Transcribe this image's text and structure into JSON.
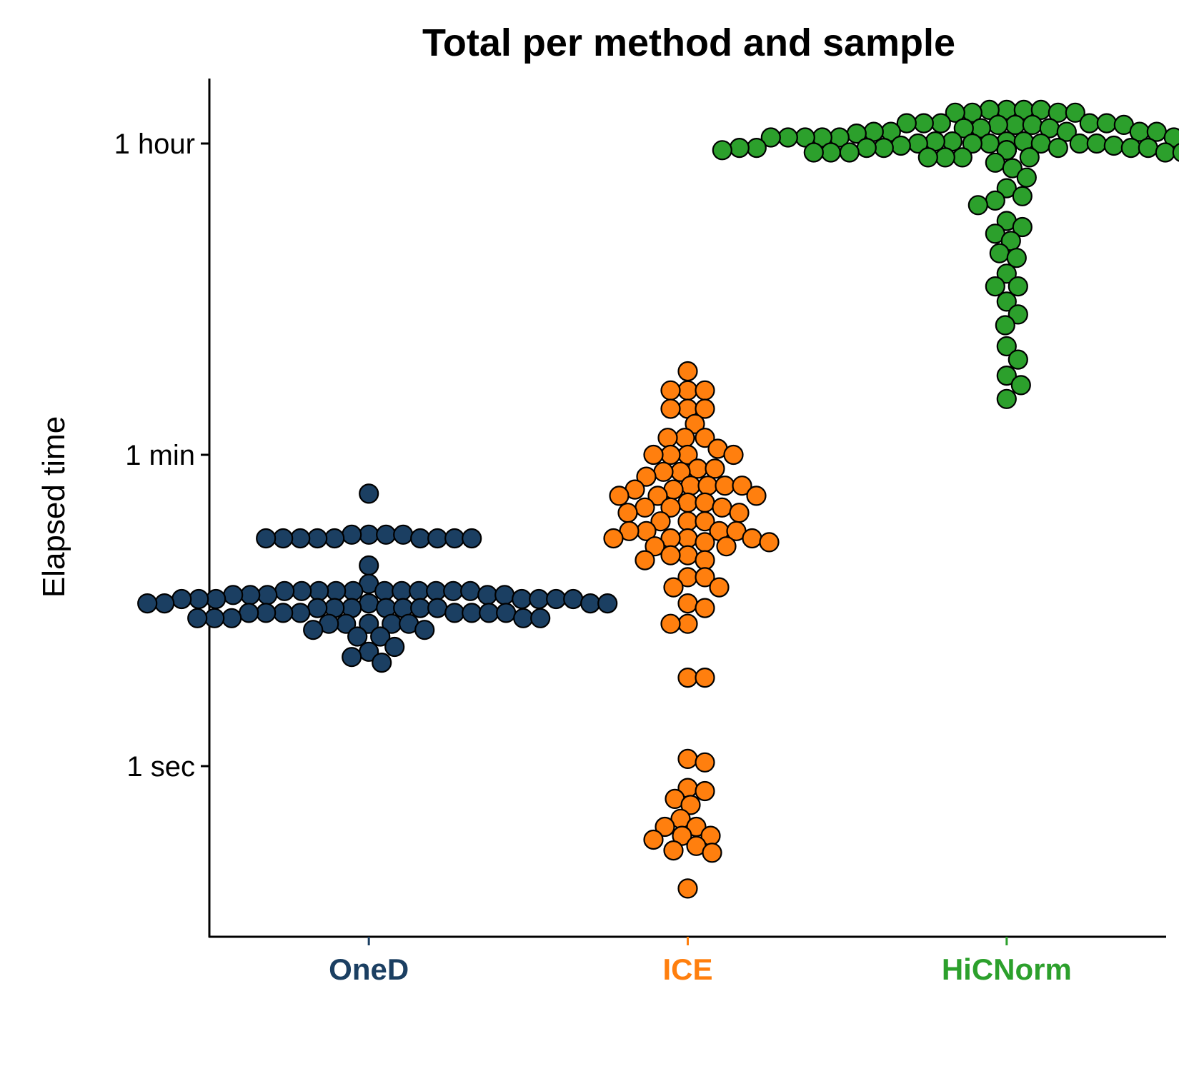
{
  "chart_data": {
    "type": "scatter",
    "subtype": "beeswarm",
    "title": "Total per method and sample",
    "xlabel": "",
    "ylabel": "Elapsed time",
    "y_scale": "log",
    "y_unit": "seconds",
    "ylim": [
      0.13,
      9400
    ],
    "y_ticks": [
      {
        "value": 1,
        "label": "1 sec"
      },
      {
        "value": 60,
        "label": "1 min"
      },
      {
        "value": 3600,
        "label": "1 hour"
      }
    ],
    "grid": false,
    "legend": "none",
    "categories": [
      "OneD",
      "ICE",
      "HiCNorm"
    ],
    "series": [
      {
        "category": "OneD",
        "color": "#1b3f62",
        "values": [
          36,
          21,
          20,
          20,
          20,
          21,
          20,
          20,
          21,
          20,
          21,
          20,
          20,
          20,
          14,
          11,
          10,
          10,
          10,
          10,
          10,
          10,
          10,
          10,
          10,
          10,
          10,
          9.5,
          9.5,
          9.5,
          9.5,
          9.5,
          9,
          9,
          9,
          9,
          9,
          9,
          9,
          8.5,
          8.5,
          8.5,
          8.5,
          8.5,
          8,
          8,
          8,
          8,
          8,
          8,
          8,
          7.5,
          7.5,
          7.5,
          7.5,
          7.5,
          7.5,
          7.5,
          7.5,
          7,
          7,
          7,
          7,
          7,
          6.5,
          6.5,
          6.5,
          6.5,
          6.5,
          6,
          6,
          5.5,
          5.5,
          4.8,
          4.5,
          4.2,
          3.9
        ]
      },
      {
        "category": "ICE",
        "color": "#ff7f0e",
        "values": [
          180,
          140,
          140,
          140,
          110,
          110,
          110,
          90,
          75,
          75,
          75,
          65,
          60,
          60,
          60,
          60,
          50,
          50,
          48,
          48,
          45,
          40,
          40,
          40,
          40,
          38,
          38,
          35,
          35,
          35,
          32,
          32,
          30,
          30,
          30,
          28,
          28,
          25,
          25,
          25,
          22,
          22,
          22,
          22,
          20,
          20,
          20,
          20,
          19,
          19,
          18,
          18,
          16,
          16,
          15,
          15,
          12,
          12,
          10.5,
          10.5,
          8.5,
          8,
          6.5,
          6.5,
          3.2,
          3.2,
          1.1,
          1.05,
          0.75,
          0.72,
          0.65,
          0.6,
          0.5,
          0.45,
          0.45,
          0.4,
          0.4,
          0.38,
          0.35,
          0.33,
          0.32,
          0.2
        ]
      },
      {
        "category": "HiCNorm",
        "color": "#2ca02c",
        "values": [
          5600,
          5600,
          5600,
          5600,
          5400,
          5400,
          5400,
          5400,
          4700,
          4700,
          4700,
          4700,
          4700,
          4600,
          4600,
          4600,
          4600,
          4400,
          4400,
          4400,
          4200,
          4200,
          4200,
          4200,
          4200,
          4100,
          3900,
          3900,
          3900,
          3900,
          3900,
          3900,
          3900,
          3900,
          3900,
          3900,
          3700,
          3700,
          3700,
          3700,
          3600,
          3600,
          3600,
          3600,
          3600,
          3600,
          3500,
          3500,
          3500,
          3400,
          3400,
          3400,
          3400,
          3400,
          3400,
          3400,
          3300,
          3300,
          3300,
          3300,
          3300,
          3300,
          3300,
          3300,
          3300,
          3300,
          3200,
          3200,
          3200,
          3200,
          3200,
          3200,
          3200,
          3000,
          3000,
          3000,
          3000,
          2800,
          2600,
          2300,
          2000,
          1800,
          1700,
          1600,
          1300,
          1200,
          1100,
          1000,
          850,
          800,
          650,
          550,
          550,
          450,
          380,
          330,
          250,
          210,
          170,
          150,
          125
        ]
      }
    ]
  }
}
